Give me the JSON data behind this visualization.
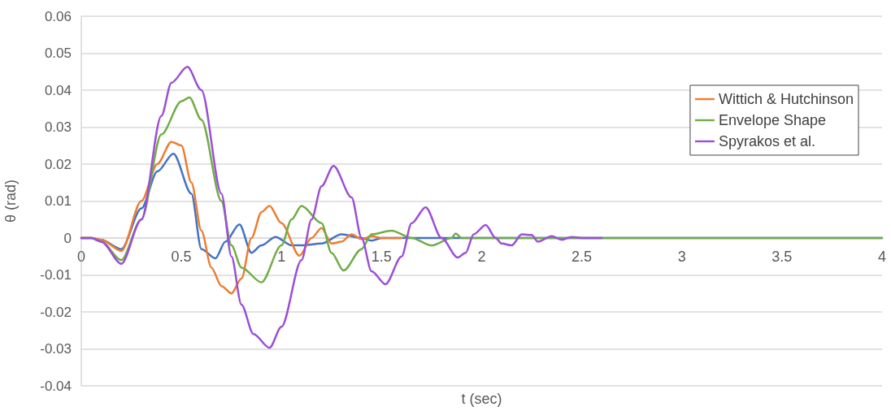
{
  "chart_data": {
    "type": "line",
    "xlabel": "t (sec)",
    "ylabel": "θ (rad)",
    "xlim": [
      0,
      4
    ],
    "xticks": [
      0,
      0.5,
      1,
      1.5,
      2,
      2.5,
      3,
      3.5,
      4
    ],
    "ylim": [
      -0.04,
      0.06
    ],
    "yticks": [
      -0.04,
      -0.03,
      -0.02,
      -0.01,
      0,
      0.01,
      0.02,
      0.03,
      0.04,
      0.05,
      0.06
    ],
    "grid": "y",
    "legend": "top right",
    "marker": "none",
    "line_style": "solid",
    "series": [
      {
        "color": "#4472c4",
        "x": [
          0,
          0.05,
          0.1,
          0.2,
          0.3,
          0.38,
          0.46,
          0.55,
          0.6,
          0.67,
          0.72,
          0.79,
          0.85,
          0.9,
          0.97,
          1.05,
          1.1,
          1.2,
          1.3,
          1.4,
          1.45,
          1.5,
          2,
          4
        ],
        "values": [
          0,
          0,
          -0.0005,
          -0.003,
          0.008,
          0.018,
          0.0228,
          0.012,
          -0.003,
          -0.0055,
          -0.001,
          0.0037,
          -0.004,
          -0.002,
          0.0003,
          -0.002,
          -0.002,
          -0.0015,
          0.001,
          0,
          -0.0007,
          0,
          0,
          0
        ]
      },
      {
        "name": "Wittich & Hutchinson",
        "color": "#ed7d31",
        "x": [
          0,
          0.05,
          0.1,
          0.2,
          0.3,
          0.38,
          0.45,
          0.5,
          0.55,
          0.6,
          0.65,
          0.7,
          0.75,
          0.8,
          0.85,
          0.9,
          0.94,
          1.0,
          1.09,
          1.15,
          1.2,
          1.25,
          1.3,
          1.35,
          1.4,
          1.45,
          1.5,
          1.6
        ],
        "values": [
          0,
          0,
          -0.0005,
          -0.0035,
          0.01,
          0.02,
          0.026,
          0.025,
          0.015,
          0.002,
          -0.008,
          -0.013,
          -0.015,
          -0.011,
          0,
          0.007,
          0.0087,
          0.004,
          -0.0048,
          0,
          0.0027,
          -0.0015,
          -0.001,
          0.001,
          -0.0003,
          0.0005,
          0,
          0
        ]
      },
      {
        "name": "Envelope Shape",
        "color": "#70ad47",
        "x": [
          0,
          0.05,
          0.1,
          0.2,
          0.3,
          0.4,
          0.5,
          0.54,
          0.6,
          0.7,
          0.75,
          0.8,
          0.9,
          1.0,
          1.05,
          1.1,
          1.2,
          1.25,
          1.31,
          1.4,
          1.45,
          1.55,
          1.65,
          1.75,
          1.85,
          1.87,
          1.9,
          2,
          4
        ],
        "values": [
          0,
          0,
          -0.001,
          -0.006,
          0.005,
          0.028,
          0.037,
          0.038,
          0.032,
          0.01,
          -0.002,
          -0.008,
          -0.012,
          -0.002,
          0.005,
          0.0087,
          0.004,
          -0.004,
          -0.0088,
          -0.003,
          0.001,
          0.002,
          0,
          -0.002,
          0,
          0.0012,
          0,
          0,
          0
        ]
      },
      {
        "name": "Spyrakos et al.",
        "color": "#9b4fd6",
        "x": [
          0,
          0.05,
          0.1,
          0.2,
          0.3,
          0.4,
          0.45,
          0.53,
          0.6,
          0.7,
          0.75,
          0.8,
          0.86,
          0.94,
          1.0,
          1.1,
          1.15,
          1.2,
          1.26,
          1.35,
          1.4,
          1.45,
          1.52,
          1.6,
          1.65,
          1.72,
          1.8,
          1.88,
          1.92,
          1.96,
          2.02,
          2.07,
          2.1,
          2.15,
          2.2,
          2.25,
          2.28,
          2.35,
          2.4,
          2.45,
          2.5,
          2.6
        ],
        "values": [
          0,
          0,
          -0.001,
          -0.007,
          0.005,
          0.033,
          0.042,
          0.0463,
          0.04,
          0.012,
          -0.005,
          -0.018,
          -0.026,
          -0.0297,
          -0.024,
          -0.006,
          0.005,
          0.014,
          0.0195,
          0.011,
          0,
          -0.009,
          -0.0125,
          -0.005,
          0.004,
          0.0083,
          0,
          -0.0053,
          -0.004,
          0.001,
          0.0035,
          0,
          -0.0015,
          -0.002,
          0.001,
          0.0008,
          -0.001,
          0.0005,
          -0.0005,
          0.0003,
          0,
          0
        ]
      }
    ]
  }
}
